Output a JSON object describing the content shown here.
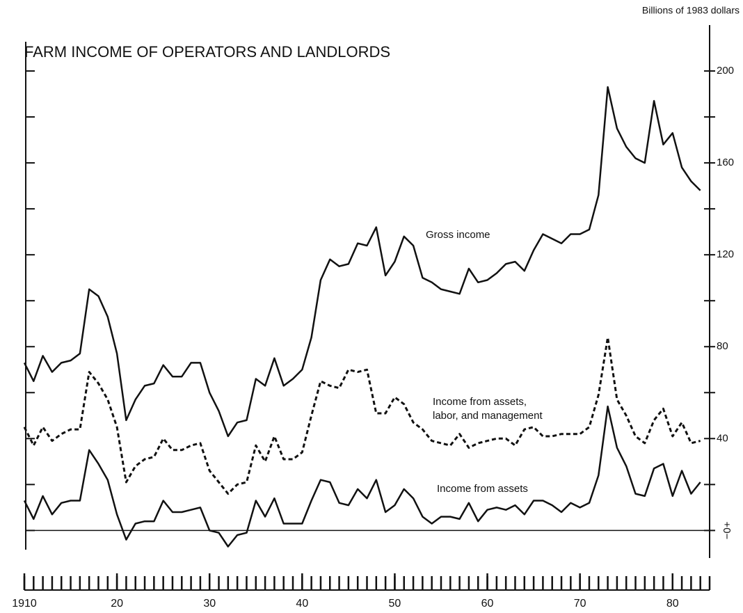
{
  "chart_data": {
    "type": "line",
    "title": "FARM INCOME OF OPERATORS AND LANDLORDS",
    "y_axis_label": "Billions of 1983 dollars",
    "x": [
      1910,
      1911,
      1912,
      1913,
      1914,
      1915,
      1916,
      1917,
      1918,
      1919,
      1920,
      1921,
      1922,
      1923,
      1924,
      1925,
      1926,
      1927,
      1928,
      1929,
      1930,
      1931,
      1932,
      1933,
      1934,
      1935,
      1936,
      1937,
      1938,
      1939,
      1940,
      1941,
      1942,
      1943,
      1944,
      1945,
      1946,
      1947,
      1948,
      1949,
      1950,
      1951,
      1952,
      1953,
      1954,
      1955,
      1956,
      1957,
      1958,
      1959,
      1960,
      1961,
      1962,
      1963,
      1964,
      1965,
      1966,
      1967,
      1968,
      1969,
      1970,
      1971,
      1972,
      1973,
      1974,
      1975,
      1976,
      1977,
      1978,
      1979,
      1980,
      1981,
      1982,
      1983
    ],
    "series": [
      {
        "name": "Gross income",
        "color": "#111111",
        "dashed": false,
        "values": [
          73,
          65,
          76,
          69,
          73,
          74,
          77,
          105,
          102,
          93,
          77,
          48,
          57,
          63,
          64,
          72,
          67,
          67,
          73,
          73,
          60,
          52,
          41,
          47,
          48,
          66,
          63,
          75,
          63,
          66,
          70,
          84,
          109,
          118,
          115,
          116,
          125,
          124,
          132,
          111,
          117,
          128,
          124,
          110,
          108,
          105,
          104,
          103,
          114,
          108,
          109,
          112,
          116,
          117,
          113,
          122,
          129,
          127,
          125,
          129,
          129,
          131,
          146,
          193,
          175,
          167,
          162,
          160,
          187,
          168,
          173,
          158,
          152,
          148
        ]
      },
      {
        "name": "Income from assets, labor, and management",
        "color": "#111111",
        "dashed": true,
        "values": [
          45,
          37,
          45,
          39,
          42,
          44,
          44,
          69,
          64,
          57,
          45,
          21,
          28,
          31,
          32,
          40,
          35,
          35,
          37,
          38,
          26,
          21,
          16,
          20,
          21,
          37,
          30,
          41,
          31,
          31,
          34,
          50,
          65,
          63,
          62,
          70,
          69,
          70,
          51,
          51,
          58,
          55,
          47,
          44,
          39,
          38,
          37,
          42,
          36,
          38,
          39,
          40,
          40,
          37,
          44,
          45,
          41,
          41,
          42,
          42,
          42,
          45,
          59,
          84,
          57,
          50,
          41,
          38,
          48,
          53,
          41,
          47,
          38,
          39
        ]
      },
      {
        "name": "Income from assets",
        "color": "#111111",
        "dashed": false,
        "values": [
          13,
          5,
          15,
          7,
          12,
          13,
          13,
          35,
          29,
          22,
          7,
          -4,
          3,
          4,
          4,
          13,
          8,
          8,
          9,
          10,
          0,
          -1,
          -7,
          -2,
          -1,
          13,
          6,
          14,
          3,
          3,
          3,
          13,
          22,
          21,
          12,
          11,
          18,
          14,
          22,
          8,
          11,
          18,
          14,
          6,
          3,
          6,
          6,
          5,
          12,
          4,
          9,
          10,
          9,
          11,
          7,
          13,
          13,
          11,
          8,
          12,
          10,
          12,
          24,
          54,
          36,
          28,
          16,
          15,
          27,
          29,
          15,
          26,
          16,
          21
        ]
      }
    ],
    "xlim": [
      1910,
      1984
    ],
    "xticks": [
      1910,
      {
        "value": 1920,
        "label": "20"
      },
      {
        "value": 1930,
        "label": "30"
      },
      {
        "value": 1940,
        "label": "40"
      },
      {
        "value": 1950,
        "label": "50"
      },
      {
        "value": 1960,
        "label": "60"
      },
      {
        "value": 1970,
        "label": "70"
      },
      {
        "value": 1980,
        "label": "80"
      }
    ],
    "ylim": [
      -12,
      220
    ],
    "yticks": [
      {
        "value": 0,
        "label": "+0−"
      },
      40,
      80,
      120,
      160,
      200
    ],
    "yminor": [
      20,
      60,
      100,
      140,
      180
    ],
    "grid": false
  }
}
